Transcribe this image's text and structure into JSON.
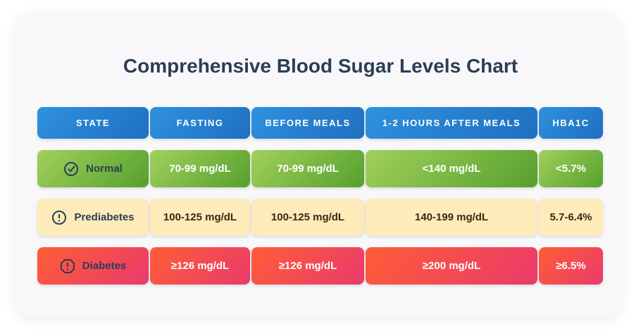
{
  "header": {
    "title": "Comprehensive Blood Sugar Levels Chart"
  },
  "table": {
    "columns": [
      "STATE",
      "FASTING",
      "BEFORE MEALS",
      "1-2 HOURS AFTER MEALS",
      "HBA1C"
    ],
    "rows": [
      [
        "Normal",
        "70-99 mg/dL",
        "70-99 mg/dL",
        "<140 mg/dL",
        "<5.7%"
      ],
      [
        "Prediabetes",
        "100-125 mg/dL",
        "100-125 mg/dL",
        "140-199 mg/dL",
        "5.7-6.4%"
      ],
      [
        "Diabetes",
        "≥126 mg/dL",
        "≥126 mg/dL",
        "≥200 mg/dL",
        "≥6.5%"
      ]
    ]
  }
}
